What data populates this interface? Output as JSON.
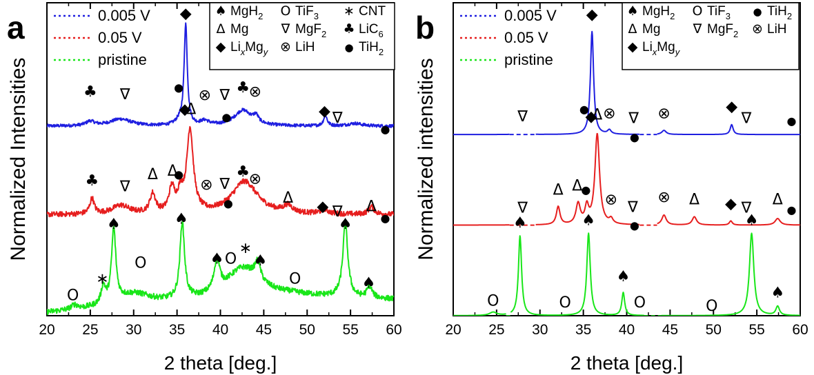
{
  "figure": {
    "panels": [
      {
        "label": "a",
        "xlabel": "2 theta [deg.]",
        "ylabel": "Normalized Intensities",
        "xlim": [
          20,
          60
        ],
        "xticks": [
          "20",
          "25",
          "30",
          "35",
          "40",
          "45",
          "50",
          "55",
          "60"
        ],
        "series_legend": [
          {
            "label": "0.005 V",
            "color": "#1f1fe0"
          },
          {
            "label": "0.05 V",
            "color": "#e61e1e"
          },
          {
            "label": "pristine",
            "color": "#19e619"
          }
        ],
        "phase_legend": [
          {
            "icon": "spade-icon",
            "glyph": "♠",
            "name": "MgH",
            "sub": "2",
            "tail": ""
          },
          {
            "icon": "circle-open-icon",
            "glyph": "O",
            "name": "TiF",
            "sub": "3",
            "tail": ""
          },
          {
            "icon": "asterisk-icon",
            "glyph": "∗",
            "name": "CNT",
            "sub": "",
            "tail": ""
          },
          {
            "icon": "triangle-up-icon",
            "glyph": "Δ",
            "name": "Mg",
            "sub": "",
            "tail": ""
          },
          {
            "icon": "triangle-down-icon",
            "glyph": "∇",
            "name": "MgF",
            "sub": "2",
            "tail": ""
          },
          {
            "icon": "club-icon",
            "glyph": "♣",
            "name": "LiC",
            "sub": "6",
            "tail": ""
          },
          {
            "icon": "diamond-icon",
            "glyph": "◆",
            "name": "Li",
            "sub": "x",
            "tail": "Mg",
            "sub2": "y"
          },
          {
            "icon": "circle-cross-icon",
            "glyph": "⊗",
            "name": "LiH",
            "sub": "",
            "tail": ""
          },
          {
            "icon": "dot-icon",
            "glyph": "●",
            "name": "TiH",
            "sub": "2",
            "tail": ""
          }
        ]
      },
      {
        "label": "b",
        "xlabel": "2 theta [deg.]",
        "ylabel": "Normalized intensities",
        "xlim": [
          20,
          60
        ],
        "xticks": [
          "20",
          "25",
          "30",
          "35",
          "40",
          "45",
          "50",
          "55",
          "60"
        ],
        "series_legend": [
          {
            "label": "0.005 V",
            "color": "#1f1fe0"
          },
          {
            "label": "0.05 V",
            "color": "#e61e1e"
          },
          {
            "label": "pristine",
            "color": "#19e619"
          }
        ],
        "phase_legend": [
          {
            "icon": "spade-icon",
            "glyph": "♠",
            "name": "MgH",
            "sub": "2",
            "tail": ""
          },
          {
            "icon": "circle-open-icon",
            "glyph": "O",
            "name": "TiF",
            "sub": "3",
            "tail": ""
          },
          {
            "icon": "dot-icon",
            "glyph": "●",
            "name": "TiH",
            "sub": "2",
            "tail": ""
          },
          {
            "icon": "triangle-up-icon",
            "glyph": "Δ",
            "name": "Mg",
            "sub": "",
            "tail": ""
          },
          {
            "icon": "triangle-down-icon",
            "glyph": "∇",
            "name": "MgF",
            "sub": "2",
            "tail": ""
          },
          {
            "icon": "circle-cross-icon",
            "glyph": "⊗",
            "name": "LiH",
            "sub": "",
            "tail": ""
          },
          {
            "icon": "diamond-icon",
            "glyph": "◆",
            "name": "Li",
            "sub": "x",
            "tail": "Mg",
            "sub2": "y"
          }
        ]
      }
    ]
  },
  "chart_data": [
    {
      "type": "line",
      "panel": "a",
      "xlabel": "2 theta [deg.]",
      "ylabel": "Normalized Intensities",
      "xlim": [
        20,
        60
      ],
      "y_ticks_shown": false,
      "series": [
        {
          "name": "0.005 V",
          "color": "#1f1fe0",
          "offset": 2.0,
          "base": 0.18,
          "noise": 0.018,
          "tilt": 0,
          "peaks": [
            [
              25,
              0.05,
              0.6
            ],
            [
              28.5,
              0.08,
              1.5
            ],
            [
              35.3,
              0.05,
              0.6
            ],
            [
              36.0,
              1.15,
              0.22
            ],
            [
              38.2,
              0.05,
              0.6
            ],
            [
              42.6,
              0.18,
              1.2
            ],
            [
              44.1,
              0.08,
              0.35
            ],
            [
              52.1,
              0.12,
              0.25
            ],
            [
              55.5,
              0.03,
              1.0
            ]
          ]
        },
        {
          "name": "0.05 V",
          "color": "#e61e1e",
          "offset": 1.08,
          "base": 0.08,
          "noise": 0.03,
          "tilt": 0,
          "peaks": [
            [
              25.2,
              0.18,
              0.3
            ],
            [
              28.5,
              0.1,
              1.2
            ],
            [
              32.2,
              0.22,
              0.4
            ],
            [
              34.4,
              0.27,
              0.4
            ],
            [
              35.4,
              0.2,
              0.4
            ],
            [
              36.5,
              0.95,
              0.45
            ],
            [
              42.8,
              0.38,
              1.8
            ],
            [
              47.8,
              0.08,
              0.6
            ],
            [
              52.0,
              0.05,
              0.5
            ],
            [
              57.4,
              0.09,
              0.4
            ]
          ]
        },
        {
          "name": "pristine",
          "color": "#19e619",
          "offset": 0.0,
          "base": 0.03,
          "noise": 0.032,
          "tilt": 0.007,
          "peaks": [
            [
              23.2,
              0.05,
              0.5
            ],
            [
              26.5,
              0.2,
              0.3
            ],
            [
              27.7,
              0.84,
              0.3
            ],
            [
              30,
              0.14,
              2.5
            ],
            [
              35.6,
              0.88,
              0.32
            ],
            [
              39.6,
              0.35,
              0.4
            ],
            [
              42.6,
              0.35,
              2.4
            ],
            [
              44.3,
              0.2,
              0.4
            ],
            [
              54.4,
              0.83,
              0.35
            ],
            [
              57.2,
              0.13,
              0.35
            ]
          ]
        }
      ],
      "annotations": [
        {
          "glyph": "◆",
          "x": 36.0,
          "y": 3.42
        },
        {
          "glyph": "♣",
          "x": 25.0,
          "y": 2.52
        },
        {
          "glyph": "∇",
          "x": 29.0,
          "y": 2.49
        },
        {
          "glyph": "●",
          "x": 35.2,
          "y": 2.58
        },
        {
          "glyph": "⊗",
          "x": 38.2,
          "y": 2.48
        },
        {
          "glyph": "∇",
          "x": 40.5,
          "y": 2.48
        },
        {
          "glyph": "●",
          "x": 40.7,
          "y": 2.24
        },
        {
          "glyph": "♣",
          "x": 42.6,
          "y": 2.57
        },
        {
          "glyph": "⊗",
          "x": 44.0,
          "y": 2.52
        },
        {
          "glyph": "◆",
          "x": 52.0,
          "y": 2.3
        },
        {
          "glyph": "∇",
          "x": 53.5,
          "y": 2.22
        },
        {
          "glyph": "●",
          "x": 59.0,
          "y": 2.1
        },
        {
          "glyph": "◆",
          "x": 35.9,
          "y": 2.32
        },
        {
          "glyph": "Δ",
          "x": 36.6,
          "y": 2.32
        },
        {
          "glyph": "♣",
          "x": 25.2,
          "y": 1.5
        },
        {
          "glyph": "∇",
          "x": 29.0,
          "y": 1.43
        },
        {
          "glyph": "Δ",
          "x": 32.2,
          "y": 1.57
        },
        {
          "glyph": "Δ",
          "x": 34.5,
          "y": 1.61
        },
        {
          "glyph": "●",
          "x": 35.2,
          "y": 1.58
        },
        {
          "glyph": "⊗",
          "x": 38.4,
          "y": 1.45
        },
        {
          "glyph": "∇",
          "x": 40.5,
          "y": 1.46
        },
        {
          "glyph": "●",
          "x": 40.9,
          "y": 1.25
        },
        {
          "glyph": "♣",
          "x": 42.6,
          "y": 1.6
        },
        {
          "glyph": "⊗",
          "x": 44.0,
          "y": 1.52
        },
        {
          "glyph": "Δ",
          "x": 47.8,
          "y": 1.3
        },
        {
          "glyph": "◆",
          "x": 51.8,
          "y": 1.2
        },
        {
          "glyph": "∇",
          "x": 53.5,
          "y": 1.14
        },
        {
          "glyph": "Δ",
          "x": 57.4,
          "y": 1.2
        },
        {
          "glyph": "●",
          "x": 59.0,
          "y": 1.08
        },
        {
          "glyph": "♠",
          "x": 27.7,
          "y": 1.0
        },
        {
          "glyph": "∗",
          "x": 26.4,
          "y": 0.37
        },
        {
          "glyph": "O",
          "x": 23.0,
          "y": 0.18
        },
        {
          "glyph": "O",
          "x": 30.8,
          "y": 0.55
        },
        {
          "glyph": "♠",
          "x": 35.5,
          "y": 1.06
        },
        {
          "glyph": "♠",
          "x": 39.6,
          "y": 0.6
        },
        {
          "glyph": "O",
          "x": 41.2,
          "y": 0.6
        },
        {
          "glyph": "∗",
          "x": 42.9,
          "y": 0.72
        },
        {
          "glyph": "♠",
          "x": 44.6,
          "y": 0.58
        },
        {
          "glyph": "O",
          "x": 48.6,
          "y": 0.37
        },
        {
          "glyph": "♠",
          "x": 54.4,
          "y": 1.0
        },
        {
          "glyph": "♠",
          "x": 57.1,
          "y": 0.32
        }
      ]
    },
    {
      "type": "line",
      "panel": "b",
      "xlabel": "2 theta [deg.]",
      "ylabel": "Normalized intensities",
      "xlim": [
        20,
        60
      ],
      "y_ticks_shown": false,
      "series": [
        {
          "name": "0.005 V",
          "color": "#1f1fe0",
          "offset": 2.2,
          "base": 0.0,
          "noise": 0,
          "tilt": 0,
          "gaps": [
            [
              26.5,
              29.5
            ],
            [
              41.5,
              43.5
            ]
          ],
          "peaks": [
            [
              28,
              0.02,
              0.4
            ],
            [
              36.0,
              1.25,
              0.22
            ],
            [
              38.0,
              0.05,
              0.25
            ],
            [
              44.3,
              0.05,
              0.3
            ],
            [
              52.1,
              0.12,
              0.2
            ]
          ]
        },
        {
          "name": "0.05 V",
          "color": "#e61e1e",
          "offset": 1.1,
          "base": 0.0,
          "noise": 0,
          "tilt": 0,
          "gaps": [
            [
              26.5,
              29.5
            ],
            [
              41.5,
              43.5
            ]
          ],
          "peaks": [
            [
              32.1,
              0.22,
              0.25
            ],
            [
              34.4,
              0.25,
              0.3
            ],
            [
              35.4,
              0.2,
              0.25
            ],
            [
              36.6,
              1.1,
              0.32
            ],
            [
              38.2,
              0.06,
              0.25
            ],
            [
              44.3,
              0.12,
              0.3
            ],
            [
              47.8,
              0.1,
              0.3
            ],
            [
              52.0,
              0.05,
              0.2
            ],
            [
              57.4,
              0.08,
              0.35
            ]
          ]
        },
        {
          "name": "pristine",
          "color": "#19e619",
          "offset": 0.0,
          "base": 0.0,
          "noise": 0,
          "tilt": 0,
          "gaps": [
            [
              26.1,
              26.6
            ],
            [
              42,
              44
            ]
          ],
          "peaks": [
            [
              24.6,
              0.04,
              0.5
            ],
            [
              27.7,
              0.97,
              0.22
            ],
            [
              35.6,
              1.0,
              0.24
            ],
            [
              39.6,
              0.28,
              0.2
            ],
            [
              54.4,
              1.0,
              0.3
            ],
            [
              57.4,
              0.11,
              0.25
            ]
          ]
        }
      ],
      "annotations": [
        {
          "glyph": "◆",
          "x": 36.0,
          "y": 3.6
        },
        {
          "glyph": "∇",
          "x": 28.0,
          "y": 2.36
        },
        {
          "glyph": "●",
          "x": 35.1,
          "y": 2.46
        },
        {
          "glyph": "⊗",
          "x": 38.0,
          "y": 2.4
        },
        {
          "glyph": "∇",
          "x": 40.8,
          "y": 2.34
        },
        {
          "glyph": "●",
          "x": 40.9,
          "y": 2.12
        },
        {
          "glyph": "⊗",
          "x": 44.3,
          "y": 2.4
        },
        {
          "glyph": "◆",
          "x": 52.1,
          "y": 2.48
        },
        {
          "glyph": "∇",
          "x": 53.8,
          "y": 2.34
        },
        {
          "glyph": "●",
          "x": 59.0,
          "y": 2.32
        },
        {
          "glyph": "◆",
          "x": 35.9,
          "y": 2.36
        },
        {
          "glyph": "Δ",
          "x": 36.6,
          "y": 2.38
        },
        {
          "glyph": "∇",
          "x": 28.0,
          "y": 1.25
        },
        {
          "glyph": "Δ",
          "x": 32.1,
          "y": 1.47
        },
        {
          "glyph": "Δ",
          "x": 34.3,
          "y": 1.52
        },
        {
          "glyph": "●",
          "x": 35.3,
          "y": 1.48
        },
        {
          "glyph": "⊗",
          "x": 38.2,
          "y": 1.35
        },
        {
          "glyph": "∇",
          "x": 40.7,
          "y": 1.26
        },
        {
          "glyph": "●",
          "x": 40.9,
          "y": 1.05
        },
        {
          "glyph": "⊗",
          "x": 44.3,
          "y": 1.38
        },
        {
          "glyph": "Δ",
          "x": 47.8,
          "y": 1.35
        },
        {
          "glyph": "◆",
          "x": 52.0,
          "y": 1.3
        },
        {
          "glyph": "∇",
          "x": 53.8,
          "y": 1.25
        },
        {
          "glyph": "Δ",
          "x": 57.4,
          "y": 1.35
        },
        {
          "glyph": "●",
          "x": 59.0,
          "y": 1.24
        },
        {
          "glyph": "♠",
          "x": 27.7,
          "y": 1.07
        },
        {
          "glyph": "♠",
          "x": 35.6,
          "y": 1.1
        },
        {
          "glyph": "♠",
          "x": 39.6,
          "y": 0.42
        },
        {
          "glyph": "♠",
          "x": 54.4,
          "y": 1.1
        },
        {
          "glyph": "♠",
          "x": 57.4,
          "y": 0.22
        },
        {
          "glyph": "O",
          "x": 24.6,
          "y": 0.12
        },
        {
          "glyph": "O",
          "x": 32.9,
          "y": 0.1
        },
        {
          "glyph": "O",
          "x": 41.5,
          "y": 0.1
        },
        {
          "glyph": "O",
          "x": 49.8,
          "y": 0.06
        }
      ]
    }
  ]
}
